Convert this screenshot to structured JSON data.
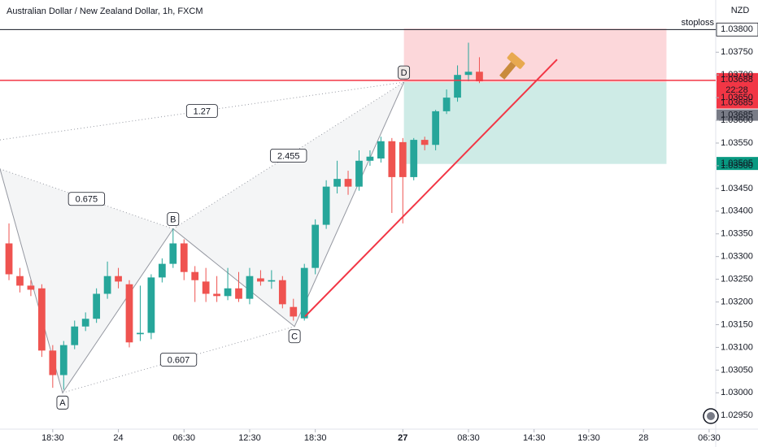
{
  "chart_data": {
    "type": "candlestick",
    "title": "Australian Dollar / New Zealand Dollar, 1h, FXCM",
    "currency": "NZD",
    "x": [
      0,
      1,
      2,
      3,
      4,
      5,
      6,
      7,
      8,
      9,
      10,
      11,
      12,
      13,
      14,
      15,
      16,
      17,
      18,
      19,
      20,
      21,
      22,
      23,
      24,
      25,
      26,
      27,
      28,
      29,
      30,
      31,
      32,
      33,
      34,
      35,
      36,
      37,
      38,
      39,
      40,
      41,
      42,
      43
    ],
    "open": [
      1.03329,
      1.03257,
      1.03236,
      1.0323,
      1.03093,
      1.03039,
      1.03105,
      1.03146,
      1.03163,
      1.03218,
      1.03257,
      1.03239,
      1.03129,
      1.03132,
      1.03254,
      1.03284,
      1.03329,
      1.03266,
      1.03245,
      1.03218,
      1.03213,
      1.0323,
      1.03207,
      1.03252,
      1.03245,
      1.03248,
      1.03189,
      1.03164,
      1.03275,
      1.0337,
      1.03454,
      1.03471,
      1.03454,
      1.03511,
      1.03516,
      1.03554,
      1.03552,
      1.03475,
      1.03557,
      1.03546,
      1.0362,
      1.0365,
      1.037,
      1.03707
    ],
    "close": [
      1.03261,
      1.03236,
      1.03227,
      1.03093,
      1.03039,
      1.03105,
      1.03146,
      1.03163,
      1.03218,
      1.03257,
      1.03245,
      1.03111,
      1.03132,
      1.03254,
      1.03284,
      1.03329,
      1.03266,
      1.03248,
      1.03218,
      1.03213,
      1.0323,
      1.03207,
      1.03257,
      1.03245,
      1.03248,
      1.03195,
      1.03168,
      1.03275,
      1.0337,
      1.03454,
      1.03471,
      1.03454,
      1.03511,
      1.0352,
      1.03554,
      1.03475,
      1.03475,
      1.03557,
      1.03546,
      1.0362,
      1.0365,
      1.037,
      1.03707,
      1.03686
    ],
    "high": [
      1.03373,
      1.03275,
      1.03248,
      1.03239,
      1.03105,
      1.03114,
      1.03159,
      1.03177,
      1.0323,
      1.03289,
      1.03275,
      1.03248,
      1.03236,
      1.03261,
      1.03296,
      1.03361,
      1.03338,
      1.03279,
      1.03275,
      1.03257,
      1.03275,
      1.03266,
      1.03275,
      1.0327,
      1.0327,
      1.03257,
      1.03207,
      1.03284,
      1.03382,
      1.03468,
      1.03511,
      1.03489,
      1.03534,
      1.03534,
      1.03564,
      1.03561,
      1.03561,
      1.03561,
      1.03564,
      1.03623,
      1.03668,
      1.03721,
      1.03771,
      1.03739
    ],
    "low": [
      1.03248,
      1.03221,
      1.03213,
      1.03079,
      1.03011,
      1.03007,
      1.03096,
      1.03136,
      1.03154,
      1.03207,
      1.0323,
      1.031,
      1.03114,
      1.03118,
      1.03243,
      1.03275,
      1.03248,
      1.032,
      1.032,
      1.032,
      1.03204,
      1.032,
      1.03195,
      1.03236,
      1.03229,
      1.03186,
      1.03159,
      1.03159,
      1.03261,
      1.03361,
      1.03439,
      1.03436,
      1.03445,
      1.035,
      1.03507,
      1.03396,
      1.03373,
      1.03468,
      1.03534,
      1.03534,
      1.03614,
      1.03641,
      1.03686,
      1.03682
    ],
    "up_color": "#26a69a",
    "down_color": "#ef5350",
    "xlim": [
      -0.82,
      64.6
    ],
    "ylim": [
      1.0292,
      1.03865
    ],
    "xticks": [
      {
        "value": 4,
        "label": "18:30"
      },
      {
        "value": 10,
        "label": "24"
      },
      {
        "value": 16,
        "label": "06:30"
      },
      {
        "value": 22,
        "label": "12:30"
      },
      {
        "value": 28,
        "label": "18:30"
      },
      {
        "value": 36,
        "label": "27"
      },
      {
        "value": 42,
        "label": "08:30"
      },
      {
        "value": 48,
        "label": "14:30"
      },
      {
        "value": 53,
        "label": "19:30"
      },
      {
        "value": 58,
        "label": "28"
      },
      {
        "value": 64,
        "label": "06:30"
      }
    ],
    "yticks": [
      {
        "value": 1.0295,
        "label": "1.02950"
      },
      {
        "value": 1.03,
        "label": "1.03000"
      },
      {
        "value": 1.0305,
        "label": "1.03050"
      },
      {
        "value": 1.031,
        "label": "1.03100"
      },
      {
        "value": 1.0315,
        "label": "1.03150"
      },
      {
        "value": 1.032,
        "label": "1.03200"
      },
      {
        "value": 1.0325,
        "label": "1.03250"
      },
      {
        "value": 1.033,
        "label": "1.03300"
      },
      {
        "value": 1.0335,
        "label": "1.03350"
      },
      {
        "value": 1.034,
        "label": "1.03400"
      },
      {
        "value": 1.0345,
        "label": "1.03450"
      },
      {
        "value": 1.035,
        "label": "1.03500"
      },
      {
        "value": 1.0355,
        "label": "1.03550"
      },
      {
        "value": 1.036,
        "label": "1.03600"
      },
      {
        "value": 1.0365,
        "label": "1.03650"
      },
      {
        "value": 1.037,
        "label": "1.03700"
      },
      {
        "value": 1.0375,
        "label": "1.03750"
      }
    ],
    "stoploss": {
      "label": "stoploss",
      "value": 1.038,
      "value_label": "1.03800"
    },
    "current_price": {
      "value": 1.03688,
      "value_label": "1.03688",
      "countdown": "22:28"
    },
    "bid_labels": [
      {
        "value": 1.03685,
        "label": "1.03685"
      },
      {
        "value": 1.03685,
        "label": "1.03685"
      }
    ],
    "target": {
      "value": 1.03505,
      "value_label": "1.03505"
    },
    "position": {
      "x": [
        36.1,
        60.1
      ],
      "stop": 1.03802,
      "entry": 1.03684,
      "target": 1.03504
    },
    "trend_line": {
      "x": [
        27.06,
        50.1
      ],
      "price": [
        1.03168,
        1.03734
      ]
    },
    "pattern_points": [
      {
        "x": -0.82,
        "price": 1.03493
      },
      {
        "x": 4.9,
        "price": 1.03,
        "label": "A"
      },
      {
        "x": 15.0,
        "price": 1.03361,
        "label": "B"
      },
      {
        "x": 26.1,
        "price": 1.03146,
        "label": "C"
      },
      {
        "x": 36.1,
        "price": 1.03684,
        "label": "D"
      }
    ],
    "ratios": [
      {
        "label": "1.27",
        "x": [
          -0.82,
          36.1
        ],
        "price": [
          1.03557,
          1.03684
        ]
      },
      {
        "label": "0.675",
        "x": [
          -0.82,
          15.0
        ],
        "price": [
          1.03493,
          1.03361
        ]
      },
      {
        "label": "2.455",
        "x": [
          15.0,
          36.1
        ],
        "price": [
          1.03361,
          1.03684
        ]
      },
      {
        "label": "0.607",
        "x": [
          4.9,
          26.1
        ],
        "price": [
          1.03,
          1.03146
        ]
      }
    ]
  }
}
